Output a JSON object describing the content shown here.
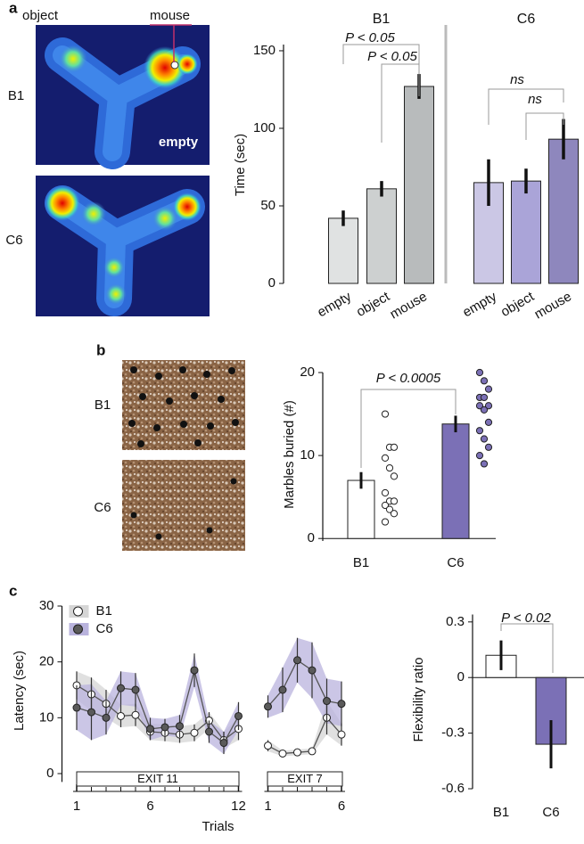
{
  "panel_labels": [
    "a",
    "b",
    "c"
  ],
  "images": {
    "heatmaps": {
      "column_labels": [
        "object",
        "mouse"
      ],
      "row_labels": [
        "B1",
        "C6"
      ],
      "zone_label": "empty"
    },
    "marbles": {
      "row_labels": [
        "B1",
        "C6"
      ]
    }
  },
  "chart_data": [
    {
      "type": "bar",
      "ylabel": "Time (sec)",
      "categories": [
        "empty",
        "object",
        "mouse"
      ],
      "series": [
        {
          "name": "B1",
          "colors": [
            "#e0e2e2",
            "#cdd0d0",
            "#b8bbbc"
          ],
          "values": [
            42,
            61,
            127
          ],
          "errors": [
            5,
            5,
            8
          ]
        },
        {
          "name": "C6",
          "colors": [
            "#cbc7e5",
            "#aaa4d8",
            "#8e87bd"
          ],
          "values": [
            65,
            66,
            93
          ],
          "errors": [
            15,
            8,
            13
          ]
        }
      ],
      "ylim": [
        0,
        154
      ],
      "yticks": [
        0,
        50,
        100,
        150
      ],
      "annotations": [
        "P < 0.05",
        "P < 0.05",
        "ns",
        "ns"
      ]
    },
    {
      "type": "bar",
      "ylabel": "Marbles buried (#)",
      "categories": [
        "B1",
        "C6"
      ],
      "values": [
        7,
        13.8
      ],
      "errors": [
        1,
        1
      ],
      "colors": [
        "#ffffff",
        "#7b70b6"
      ],
      "points": [
        [
          15,
          11,
          11,
          9.7,
          8.5,
          7.5,
          5.5,
          4.5,
          4.5,
          4,
          3.5,
          3,
          2
        ],
        [
          20,
          19,
          18,
          17,
          17,
          16,
          16,
          15.5,
          14,
          13,
          12,
          11,
          10,
          9
        ]
      ],
      "ylim": [
        -0.3,
        20
      ],
      "yticks": [
        0,
        10,
        20
      ],
      "annotations": [
        "P < 0.0005"
      ]
    },
    {
      "type": "line",
      "xlabel": "Trials",
      "ylabel": "Latency (sec)",
      "x": [
        1,
        2,
        3,
        4,
        5,
        6,
        7,
        8,
        9,
        10,
        11,
        12,
        13,
        14,
        15,
        16,
        17,
        18,
        19
      ],
      "series": [
        {
          "name": "B1",
          "color": "#ffffff",
          "band_color": "#d6d6d6",
          "values": [
            15.8,
            14.2,
            12.5,
            10.3,
            10.5,
            7.5,
            7.3,
            7,
            7.3,
            9.5,
            6,
            8,
            null,
            5,
            3.6,
            3.8,
            4,
            10,
            7
          ],
          "errors": [
            2.5,
            3,
            2.5,
            2,
            2,
            1.5,
            1.5,
            1.5,
            1.5,
            1.5,
            1.5,
            2,
            null,
            1,
            0.5,
            0.5,
            0.5,
            3,
            2
          ]
        },
        {
          "name": "C6",
          "color": "#5a5a5a",
          "band_color": "#b9b3dd",
          "values": [
            11.8,
            11,
            10,
            15.3,
            15,
            8,
            8.3,
            8.5,
            18.5,
            7.5,
            5.5,
            10.3,
            null,
            12,
            15,
            20.3,
            18.5,
            13,
            12.5
          ],
          "errors": [
            4,
            5,
            3,
            3,
            3,
            2,
            1.5,
            2,
            3,
            2,
            2,
            2.5,
            null,
            2,
            4,
            4,
            5,
            4,
            4
          ]
        }
      ],
      "xlim": [
        0,
        20
      ],
      "ylim": [
        -1.5,
        30
      ],
      "xticks": [
        1,
        6,
        12,
        {
          "value": 14,
          "label": "1"
        },
        {
          "value": 19,
          "label": "6"
        }
      ],
      "yticks": [
        0,
        10,
        20,
        30
      ],
      "annotations": [
        "EXIT 11",
        "EXIT 7"
      ],
      "legend": "upper left"
    },
    {
      "type": "bar",
      "ylabel": "Flexibility ratio",
      "categories": [
        "B1",
        "C6"
      ],
      "values": [
        0.12,
        -0.36
      ],
      "errors": [
        0.08,
        0.13
      ],
      "colors": [
        "#ffffff",
        "#7b70b6"
      ],
      "ylim": [
        -0.6,
        0.34
      ],
      "yticks": [
        0.3,
        0,
        -0.3,
        -0.6
      ],
      "annotations": [
        "P < 0.02"
      ]
    }
  ]
}
